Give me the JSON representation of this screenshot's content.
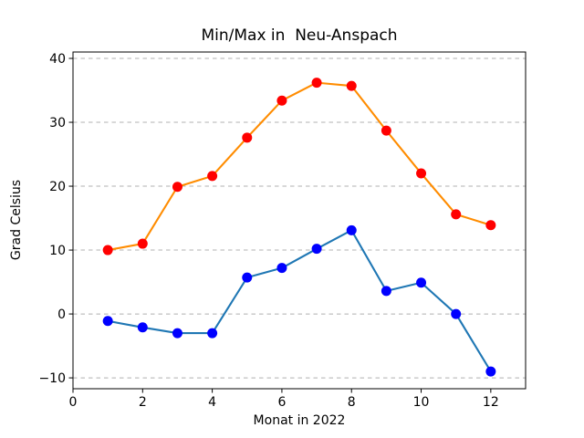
{
  "chart_data": {
    "type": "line",
    "title": "Min/Max in  Neu-Anspach",
    "xlabel": "Monat in 2022",
    "ylabel": "Grad Celsius",
    "x": [
      1,
      2,
      3,
      4,
      5,
      6,
      7,
      8,
      9,
      10,
      11,
      12
    ],
    "series": [
      {
        "name": "Max",
        "values": [
          10.0,
          11.0,
          19.9,
          21.6,
          27.6,
          33.4,
          36.2,
          35.7,
          28.7,
          22.0,
          15.6,
          13.9
        ],
        "line_color": "#ff8c00",
        "marker_color": "#ff0000"
      },
      {
        "name": "Min",
        "values": [
          -1.1,
          -2.1,
          -3.0,
          -3.0,
          5.7,
          7.2,
          10.2,
          13.1,
          3.6,
          4.9,
          0.0,
          -9.0
        ],
        "line_color": "#1f77b4",
        "marker_color": "#0000ff"
      }
    ],
    "xlim": [
      0,
      13
    ],
    "ylim": [
      -11.7,
      41.0
    ],
    "xticks": [
      0,
      2,
      4,
      6,
      8,
      10,
      12
    ],
    "yticks": [
      -10,
      0,
      10,
      20,
      30,
      40
    ],
    "grid": "horizontal-dashed",
    "grid_color": "#b0b0b0",
    "spine_color": "#000000",
    "legend": "none",
    "background_color": "#ffffff"
  }
}
